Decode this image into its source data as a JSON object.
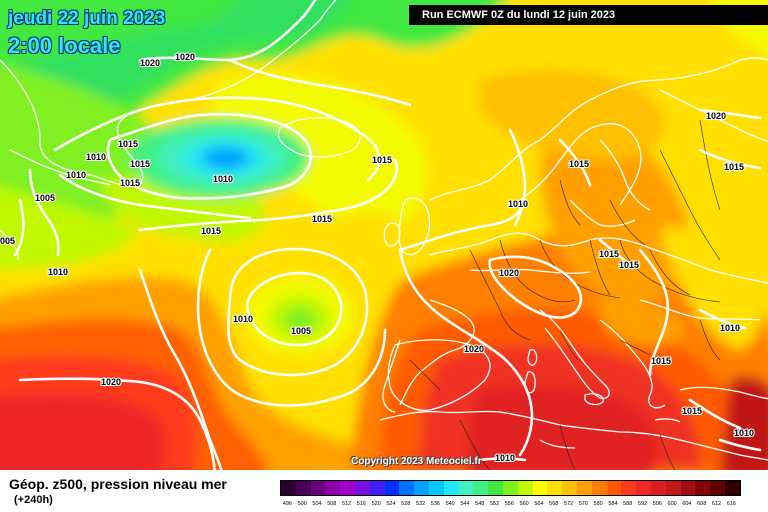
{
  "header": {
    "date_line1": "jeudi 22 juin 2023",
    "date_line2": "2:00 locale",
    "run_info": "Run ECMWF 0Z du lundi 12 juin 2023"
  },
  "copyright": "Copyright 2023 Meteociel.fr",
  "legend": {
    "title": "Géop. z500, pression niveau mer",
    "subtitle": "(+240h)",
    "scale": [
      {
        "value": "496",
        "color": "#2a0030"
      },
      {
        "value": "500",
        "color": "#4a0058"
      },
      {
        "value": "504",
        "color": "#6a0080"
      },
      {
        "value": "508",
        "color": "#8a00a8"
      },
      {
        "value": "512",
        "color": "#a400c8"
      },
      {
        "value": "516",
        "color": "#7a10e0"
      },
      {
        "value": "520",
        "color": "#4020f0"
      },
      {
        "value": "524",
        "color": "#0030ff"
      },
      {
        "value": "528",
        "color": "#0070ff"
      },
      {
        "value": "532",
        "color": "#00a0ff"
      },
      {
        "value": "536",
        "color": "#00c8ff"
      },
      {
        "value": "540",
        "color": "#20e8f0"
      },
      {
        "value": "544",
        "color": "#40f0c0"
      },
      {
        "value": "548",
        "color": "#40f080"
      },
      {
        "value": "552",
        "color": "#40e840"
      },
      {
        "value": "556",
        "color": "#80f020"
      },
      {
        "value": "560",
        "color": "#c0f800"
      },
      {
        "value": "564",
        "color": "#ffff00"
      },
      {
        "value": "568",
        "color": "#ffe000"
      },
      {
        "value": "572",
        "color": "#ffc000"
      },
      {
        "value": "576",
        "color": "#ffa000"
      },
      {
        "value": "580",
        "color": "#ff8000"
      },
      {
        "value": "584",
        "color": "#ff5a00"
      },
      {
        "value": "588",
        "color": "#ff3a1a"
      },
      {
        "value": "592",
        "color": "#f02828"
      },
      {
        "value": "596",
        "color": "#d82020"
      },
      {
        "value": "600",
        "color": "#c01818"
      },
      {
        "value": "604",
        "color": "#a01010"
      },
      {
        "value": "608",
        "color": "#800808"
      },
      {
        "value": "612",
        "color": "#600000"
      },
      {
        "value": "616",
        "color": "#300000"
      }
    ]
  },
  "isobar_labels": [
    {
      "text": "1020"
    },
    {
      "text": "1020"
    },
    {
      "text": "1010"
    },
    {
      "text": "1015"
    },
    {
      "text": "1015"
    },
    {
      "text": "1015"
    },
    {
      "text": "1010"
    },
    {
      "text": "1010"
    },
    {
      "text": "1005"
    },
    {
      "text": "1010"
    },
    {
      "text": "1015"
    },
    {
      "text": "1015"
    },
    {
      "text": "1015"
    },
    {
      "text": "1010"
    },
    {
      "text": "1005"
    },
    {
      "text": "1010"
    },
    {
      "text": "1020"
    },
    {
      "text": "1015"
    },
    {
      "text": "1015"
    },
    {
      "text": "1020"
    },
    {
      "text": "1020"
    },
    {
      "text": "1015"
    },
    {
      "text": "1015"
    },
    {
      "text": "1020"
    },
    {
      "text": "1015"
    },
    {
      "text": "1010"
    },
    {
      "text": "1015"
    },
    {
      "text": "1010"
    },
    {
      "text": "1010"
    },
    {
      "text": "005"
    }
  ]
}
